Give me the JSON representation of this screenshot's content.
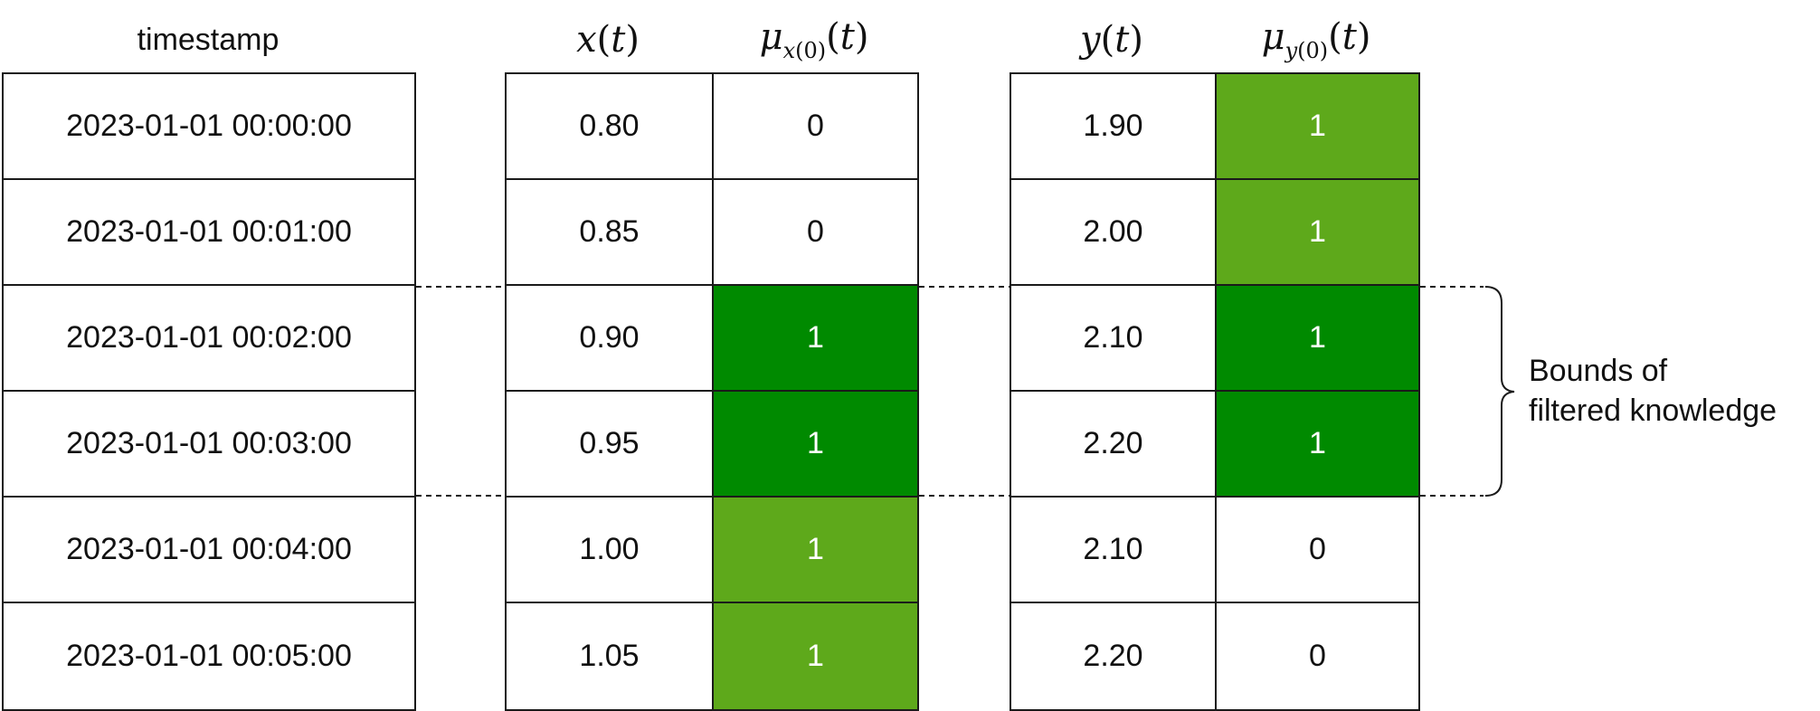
{
  "headers": {
    "timestamp": "timestamp"
  },
  "rows": [
    {
      "timestamp": "2023-01-01 00:00:00",
      "x": "0.80",
      "mu_x": "0",
      "mu_x_fill": "none",
      "y": "1.90",
      "mu_y": "1",
      "mu_y_fill": "light"
    },
    {
      "timestamp": "2023-01-01 00:01:00",
      "x": "0.85",
      "mu_x": "0",
      "mu_x_fill": "none",
      "y": "2.00",
      "mu_y": "1",
      "mu_y_fill": "light"
    },
    {
      "timestamp": "2023-01-01 00:02:00",
      "x": "0.90",
      "mu_x": "1",
      "mu_x_fill": "dark",
      "y": "2.10",
      "mu_y": "1",
      "mu_y_fill": "dark"
    },
    {
      "timestamp": "2023-01-01 00:03:00",
      "x": "0.95",
      "mu_x": "1",
      "mu_x_fill": "dark",
      "y": "2.20",
      "mu_y": "1",
      "mu_y_fill": "dark"
    },
    {
      "timestamp": "2023-01-01 00:04:00",
      "x": "1.00",
      "mu_x": "1",
      "mu_x_fill": "light",
      "y": "2.10",
      "mu_y": "0",
      "mu_y_fill": "none"
    },
    {
      "timestamp": "2023-01-01 00:05:00",
      "x": "1.05",
      "mu_x": "1",
      "mu_x_fill": "light",
      "y": "2.20",
      "mu_y": "0",
      "mu_y_fill": "none"
    }
  ],
  "annotation": {
    "line1": "Bounds of",
    "line2": "filtered knowledge"
  },
  "colors": {
    "light_green": "#5ea91b",
    "dark_green": "#008a00",
    "border": "#1a1a1a"
  }
}
